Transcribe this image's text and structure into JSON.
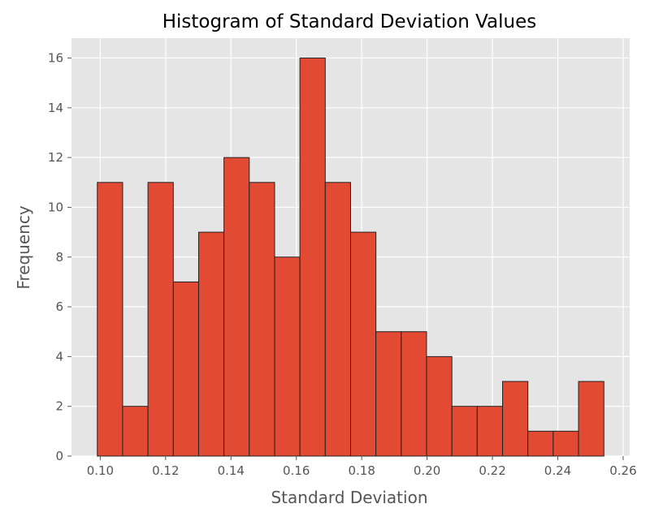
{
  "chart_data": {
    "type": "bar",
    "title": "Histogram of Standard Deviation Values",
    "xlabel": "Standard Deviation",
    "ylabel": "Frequency",
    "bin_start": 0.0991,
    "bin_width": 0.00775,
    "values": [
      11,
      2,
      11,
      7,
      9,
      12,
      11,
      8,
      16,
      11,
      9,
      5,
      5,
      4,
      2,
      2,
      3,
      1,
      1,
      3
    ],
    "xlim": [
      0.0912,
      0.262
    ],
    "ylim": [
      0,
      16.8
    ],
    "xticks": [
      "0.10",
      "0.12",
      "0.14",
      "0.16",
      "0.18",
      "0.20",
      "0.22",
      "0.24",
      "0.26"
    ],
    "yticks": [
      "0",
      "2",
      "4",
      "6",
      "8",
      "10",
      "12",
      "14",
      "16"
    ],
    "grid": true,
    "colors": {
      "bar": "#E24A33",
      "bar_edge": "#222222",
      "plot_bg": "#E5E5E5",
      "grid": "#FFFFFF"
    }
  }
}
